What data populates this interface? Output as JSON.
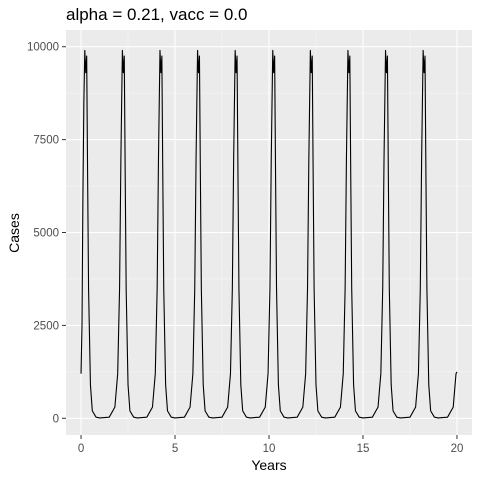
{
  "chart_data": {
    "type": "line",
    "title": "alpha = 0.21, vacc = 0.0",
    "xlabel": "Years",
    "ylabel": "Cases",
    "xlim": [
      -0.8,
      20.8
    ],
    "ylim": [
      -450,
      10450
    ],
    "x_ticks": [
      0,
      5,
      10,
      15,
      20
    ],
    "x_tick_labels": [
      "0",
      "5",
      "10",
      "15",
      "20"
    ],
    "y_ticks": [
      0,
      2500,
      5000,
      7500,
      10000
    ],
    "y_tick_labels": [
      "0",
      "2500",
      "5000",
      "7500",
      "10000"
    ],
    "grid": true,
    "series": [
      {
        "name": "Cases",
        "color": "#000000",
        "x": [
          0.0,
          0.05,
          0.1,
          0.15,
          0.2,
          0.25,
          0.3,
          0.35,
          0.4,
          0.5,
          0.6,
          0.8,
          1.0,
          1.5,
          1.8,
          1.95,
          2.05,
          2.12,
          2.2,
          2.25,
          2.3,
          2.35,
          2.4,
          2.5,
          2.6,
          2.8,
          3.0,
          3.5,
          3.8,
          3.95,
          4.05,
          4.12,
          4.2,
          4.25,
          4.3,
          4.35,
          4.4,
          4.5,
          4.6,
          4.8,
          5.0,
          5.5,
          5.8,
          5.95,
          6.05,
          6.12,
          6.2,
          6.25,
          6.3,
          6.35,
          6.4,
          6.5,
          6.6,
          6.8,
          7.0,
          7.5,
          7.8,
          7.95,
          8.05,
          8.12,
          8.2,
          8.25,
          8.3,
          8.35,
          8.4,
          8.5,
          8.6,
          8.8,
          9.0,
          9.5,
          9.8,
          9.95,
          10.05,
          10.12,
          10.2,
          10.25,
          10.3,
          10.35,
          10.4,
          10.5,
          10.6,
          10.8,
          11.0,
          11.5,
          11.8,
          11.95,
          12.05,
          12.12,
          12.2,
          12.25,
          12.3,
          12.35,
          12.4,
          12.5,
          12.6,
          12.8,
          13.0,
          13.5,
          13.8,
          13.95,
          14.05,
          14.12,
          14.2,
          14.25,
          14.3,
          14.35,
          14.4,
          14.5,
          14.6,
          14.8,
          15.0,
          15.5,
          15.8,
          15.95,
          16.05,
          16.12,
          16.2,
          16.25,
          16.3,
          16.35,
          16.4,
          16.5,
          16.6,
          16.8,
          17.0,
          17.5,
          17.8,
          17.95,
          18.05,
          18.12,
          18.2,
          18.25,
          18.3,
          18.35,
          18.4,
          18.5,
          18.6,
          18.8,
          19.0,
          19.5,
          19.8,
          19.95,
          20.0
        ],
        "y": [
          1200,
          2500,
          6000,
          8500,
          9900,
          9300,
          9750,
          6500,
          3500,
          900,
          200,
          30,
          10,
          30,
          300,
          1200,
          3500,
          7000,
          9900,
          9300,
          9750,
          6500,
          3500,
          900,
          200,
          30,
          10,
          30,
          300,
          1200,
          3500,
          7000,
          9900,
          9300,
          9750,
          6500,
          3500,
          900,
          200,
          30,
          10,
          30,
          300,
          1200,
          3500,
          7000,
          9900,
          9300,
          9750,
          6500,
          3500,
          900,
          200,
          30,
          10,
          30,
          300,
          1200,
          3500,
          7000,
          9900,
          9300,
          9750,
          6500,
          3500,
          900,
          200,
          30,
          10,
          30,
          300,
          1200,
          3500,
          7000,
          9900,
          9300,
          9750,
          6500,
          3500,
          900,
          200,
          30,
          10,
          30,
          300,
          1200,
          3500,
          7000,
          9900,
          9300,
          9750,
          6500,
          3500,
          900,
          200,
          30,
          10,
          30,
          300,
          1200,
          3500,
          7000,
          9900,
          9300,
          9750,
          6500,
          3500,
          900,
          200,
          30,
          10,
          30,
          300,
          1200,
          3500,
          7000,
          9900,
          9300,
          9750,
          6500,
          3500,
          900,
          200,
          30,
          10,
          30,
          300,
          1200,
          3500,
          7000,
          9900,
          9300,
          9750,
          6500,
          3500,
          900,
          200,
          30,
          10,
          30,
          300,
          1200,
          1250
        ]
      }
    ]
  }
}
